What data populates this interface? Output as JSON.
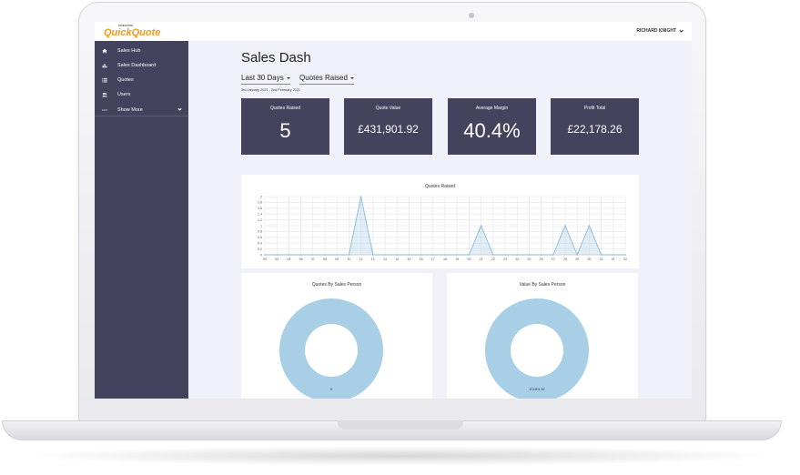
{
  "app": {
    "logo_small": "CREATIVE",
    "logo": "QuickQuote"
  },
  "header": {
    "user_name": "RICHARD KNIGHT"
  },
  "sidebar": {
    "items": [
      {
        "label": "Sales Hub",
        "icon": "home-icon"
      },
      {
        "label": "Sales Dashboard",
        "icon": "bar-chart-icon"
      },
      {
        "label": "Quotes",
        "icon": "list-icon"
      },
      {
        "label": "Users",
        "icon": "users-icon"
      },
      {
        "label": "Show More",
        "icon": "more-icon"
      }
    ]
  },
  "page": {
    "title": "Sales Dash",
    "filter_period": "Last 30 Days",
    "filter_metric": "Quotes Raised",
    "date_range": "3rd January 2021 - 2nd February 2021"
  },
  "kpis": [
    {
      "label": "Quotes Raised",
      "value": "5"
    },
    {
      "label": "Quote Value",
      "value": "£431,901.92"
    },
    {
      "label": "Average Margin",
      "value": "40.4%"
    },
    {
      "label": "Profit Total",
      "value": "£22,178.26"
    }
  ],
  "colors": {
    "sidebar": "#43435d",
    "accent": "#f49a1c",
    "chart_fill": "#a8cfe6",
    "chart_line": "#8ab8dc",
    "background": "#f1f1f9"
  },
  "chart_data": [
    {
      "type": "area",
      "title": "Quotes Raised",
      "x": [
        "03",
        "04",
        "05",
        "06",
        "07",
        "08",
        "09",
        "10",
        "11",
        "12",
        "13",
        "14",
        "15",
        "16",
        "17",
        "18",
        "19",
        "20",
        "21",
        "22",
        "23",
        "24",
        "25",
        "26",
        "27",
        "28",
        "29",
        "30",
        "31",
        "01",
        "02"
      ],
      "series": [
        {
          "values": [
            0,
            0,
            0,
            0,
            0,
            0,
            0,
            0,
            2,
            0,
            0,
            0,
            0,
            0,
            0,
            0,
            0,
            0,
            1,
            0,
            0,
            0,
            0,
            0,
            0,
            1,
            0,
            1,
            0,
            0,
            0
          ]
        }
      ],
      "yticks": [
        "0",
        "0.2",
        "0.4",
        "0.6",
        "0.8",
        "1",
        "1.2",
        "1.4",
        "1.6",
        "1.8",
        "2"
      ],
      "ylim": [
        0,
        2
      ],
      "grid": true
    },
    {
      "type": "pie",
      "title": "Quotes By Sales Person",
      "slices": [
        {
          "value": 5,
          "label": "5"
        }
      ]
    },
    {
      "type": "pie",
      "title": "Value By Sales Person",
      "slices": [
        {
          "value": 431901.92,
          "label": "431901.92"
        }
      ]
    }
  ]
}
